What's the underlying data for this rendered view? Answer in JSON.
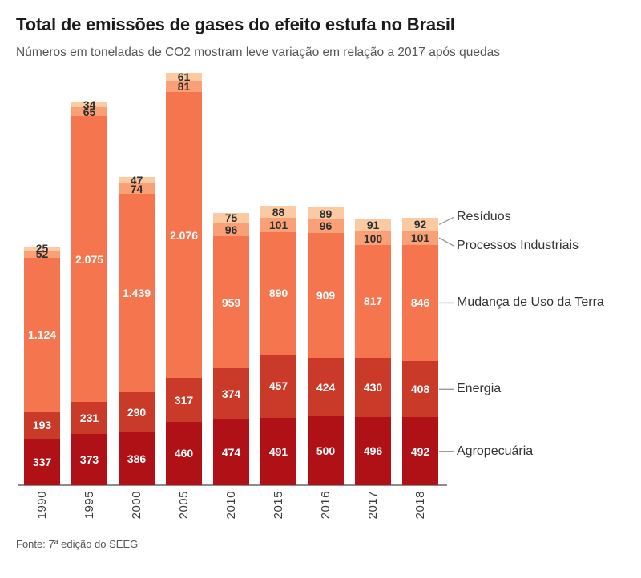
{
  "header": {
    "title": "Total de emissões de gases do efeito estufa no Brasil",
    "subtitle": "Números em toneladas de CO2 mostram leve variação em relação a 2017 após quedas"
  },
  "footer": {
    "source": "Fonte: 7ª edição do SEEG"
  },
  "chart_data": {
    "type": "bar",
    "stacked": true,
    "title": "Total de emissões de gases do efeito estufa no Brasil",
    "subtitle": "Números em toneladas de CO2 mostram leve variação em relação a 2017 após quedas",
    "unit": "toneladas de CO2",
    "categories": [
      "1990",
      "1995",
      "2000",
      "2005",
      "2010",
      "2015",
      "2016",
      "2017",
      "2018"
    ],
    "series": [
      {
        "name": "Agropecuária",
        "color": "#b01116",
        "label_color": "#ffffff",
        "values": [
          337,
          373,
          386,
          460,
          474,
          491,
          500,
          496,
          492
        ]
      },
      {
        "name": "Energia",
        "color": "#ca3a28",
        "label_color": "#ffffff",
        "values": [
          193,
          231,
          290,
          317,
          374,
          457,
          424,
          430,
          408
        ]
      },
      {
        "name": "Mudança de Uso da Terra",
        "color": "#f5754e",
        "label_color": "#ffffff",
        "values": [
          1124,
          2075,
          1439,
          2076,
          959,
          890,
          909,
          817,
          846
        ]
      },
      {
        "name": "Processos Industriais",
        "color": "#f9a077",
        "label_color": "#2e2e2e",
        "values": [
          52,
          65,
          74,
          81,
          96,
          101,
          96,
          100,
          101
        ]
      },
      {
        "name": "Resíduos",
        "color": "#fbc9a2",
        "label_color": "#2e2e2e",
        "values": [
          25,
          34,
          47,
          61,
          75,
          88,
          89,
          91,
          92
        ]
      }
    ],
    "legend_position": "right",
    "axis_color": "#8c8c8c",
    "leader_line_color": "#999999",
    "source": "Fonte: 7ª edição do SEEG"
  }
}
